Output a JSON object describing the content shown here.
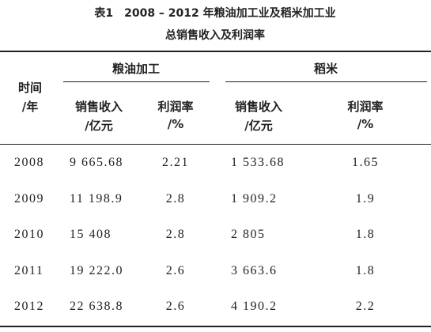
{
  "caption": {
    "label": "表1",
    "title": [
      "2008 – 2012 年粮油加工业及稻米加工业",
      "总销售收入及利润率"
    ]
  },
  "table": {
    "time_header": [
      "时间",
      "/年"
    ],
    "groups": [
      "粮油加工",
      "稻米"
    ],
    "columns": [
      [
        "销售收入",
        "/亿元"
      ],
      [
        "利润率",
        "/%"
      ],
      [
        "销售收入",
        "/亿元"
      ],
      [
        "利润率",
        "/%"
      ]
    ],
    "rows": [
      [
        "2008",
        "9 665.68",
        "2.21",
        "1 533.68",
        "1.65"
      ],
      [
        "2009",
        "11 198.9",
        "2.8",
        "1 909.2",
        "1.9"
      ],
      [
        "2010",
        "15 408",
        "2.8",
        "2 805",
        "1.8"
      ],
      [
        "2011",
        "19 222.0",
        "2.6",
        "3 663.6",
        "1.8"
      ],
      [
        "2012",
        "22 638.8",
        "2.6",
        "4 190.2",
        "2.2"
      ]
    ]
  }
}
